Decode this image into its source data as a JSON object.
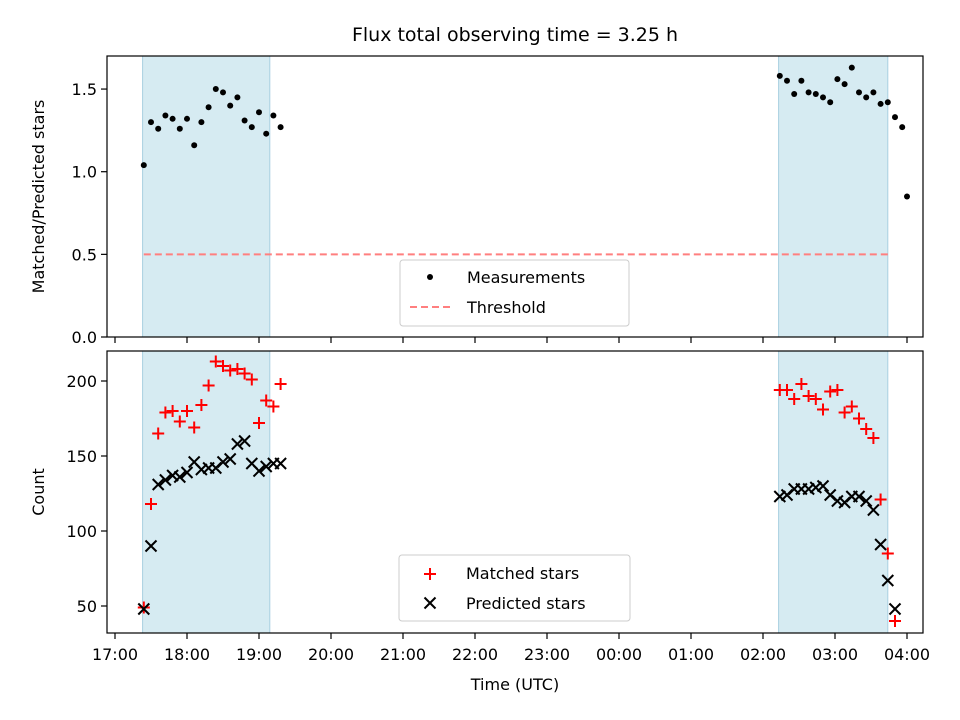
{
  "chart_data": [
    {
      "type": "scatter",
      "title": "Flux total observing time = 3.25 h",
      "xlabel": "",
      "ylabel": "Matched/Predicted stars",
      "ylim": [
        0,
        1.7
      ],
      "yticks": [
        "0.0",
        "0.5",
        "1.0",
        "1.5"
      ],
      "shaded_intervals": [
        [
          "17:23",
          "19:09"
        ],
        [
          "02:13",
          "03:44"
        ]
      ],
      "legend": {
        "position": "bottom-center"
      },
      "series": [
        {
          "name": "Measurements",
          "marker": "dot",
          "color": "#000000",
          "x": [
            "17:24",
            "17:30",
            "17:36",
            "17:42",
            "17:48",
            "17:54",
            "18:00",
            "18:06",
            "18:12",
            "18:18",
            "18:24",
            "18:30",
            "18:36",
            "18:42",
            "18:48",
            "18:54",
            "19:00",
            "19:06",
            "19:12",
            "19:18",
            "02:14",
            "02:20",
            "02:26",
            "02:32",
            "02:38",
            "02:44",
            "02:50",
            "02:56",
            "03:02",
            "03:08",
            "03:14",
            "03:20",
            "03:26",
            "03:32",
            "03:38",
            "03:44",
            "03:50",
            "03:56",
            "04:00",
            "04:06"
          ],
          "y": [
            1.04,
            1.3,
            1.26,
            1.34,
            1.32,
            1.26,
            1.32,
            1.16,
            1.3,
            1.39,
            1.5,
            1.48,
            1.4,
            1.45,
            1.31,
            1.27,
            1.36,
            1.23,
            1.34,
            1.27,
            1.58,
            1.55,
            1.47,
            1.55,
            1.48,
            1.47,
            1.45,
            1.42,
            1.56,
            1.53,
            1.63,
            1.48,
            1.45,
            1.48,
            1.41,
            1.42,
            1.33,
            1.27,
            0.85,
            null
          ]
        },
        {
          "name": "Threshold",
          "style": "dashed",
          "color": "#ff7f7f",
          "x": [
            "17:24",
            "03:44"
          ],
          "y": [
            0.5,
            0.5
          ]
        }
      ]
    },
    {
      "type": "scatter",
      "title": "",
      "xlabel": "Time (UTC)",
      "ylabel": "Count",
      "ylim": [
        32,
        220
      ],
      "yticks": [
        "50",
        "100",
        "150",
        "200"
      ],
      "xticks": [
        "17:00",
        "18:00",
        "19:00",
        "20:00",
        "21:00",
        "22:00",
        "23:00",
        "00:00",
        "01:00",
        "02:00",
        "03:00",
        "04:00"
      ],
      "shaded_intervals": [
        [
          "17:23",
          "19:09"
        ],
        [
          "02:13",
          "03:44"
        ]
      ],
      "legend": {
        "position": "bottom-center"
      },
      "series": [
        {
          "name": "Matched stars",
          "marker": "plus",
          "color": "#ff0000",
          "x": [
            "17:24",
            "17:30",
            "17:36",
            "17:42",
            "17:48",
            "17:54",
            "18:00",
            "18:06",
            "18:12",
            "18:18",
            "18:24",
            "18:30",
            "18:36",
            "18:42",
            "18:48",
            "18:54",
            "19:00",
            "19:06",
            "19:12",
            "19:18",
            "02:14",
            "02:20",
            "02:26",
            "02:32",
            "02:38",
            "02:44",
            "02:50",
            "02:56",
            "03:02",
            "03:08",
            "03:14",
            "03:20",
            "03:26",
            "03:32",
            "03:38",
            "03:44",
            "03:50",
            "03:56",
            "04:00",
            "04:06"
          ],
          "y": [
            49,
            118,
            165,
            179,
            180,
            173,
            180,
            169,
            184,
            197,
            213,
            210,
            207,
            208,
            205,
            201,
            172,
            187,
            183,
            198,
            194,
            194,
            188,
            198,
            190,
            188,
            181,
            193,
            194,
            179,
            183,
            175,
            168,
            162,
            121,
            85,
            40,
            null,
            null,
            null
          ]
        },
        {
          "name": "Predicted stars",
          "marker": "x",
          "color": "#000000",
          "x": [
            "17:24",
            "17:30",
            "17:36",
            "17:42",
            "17:48",
            "17:54",
            "18:00",
            "18:06",
            "18:12",
            "18:18",
            "18:24",
            "18:30",
            "18:36",
            "18:42",
            "18:48",
            "18:54",
            "19:00",
            "19:06",
            "19:12",
            "19:18",
            "02:14",
            "02:20",
            "02:26",
            "02:32",
            "02:38",
            "02:44",
            "02:50",
            "02:56",
            "03:02",
            "03:08",
            "03:14",
            "03:20",
            "03:26",
            "03:32",
            "03:38",
            "03:44",
            "03:50",
            "03:56",
            "04:00",
            "04:06"
          ],
          "y": [
            48,
            90,
            131,
            134,
            137,
            136,
            139,
            146,
            141,
            142,
            142,
            146,
            148,
            158,
            160,
            145,
            140,
            143,
            145,
            145,
            123,
            124,
            128,
            128,
            128,
            129,
            130,
            124,
            120,
            119,
            123,
            123,
            120,
            114,
            91,
            67,
            48,
            null,
            null,
            null
          ]
        }
      ]
    }
  ]
}
